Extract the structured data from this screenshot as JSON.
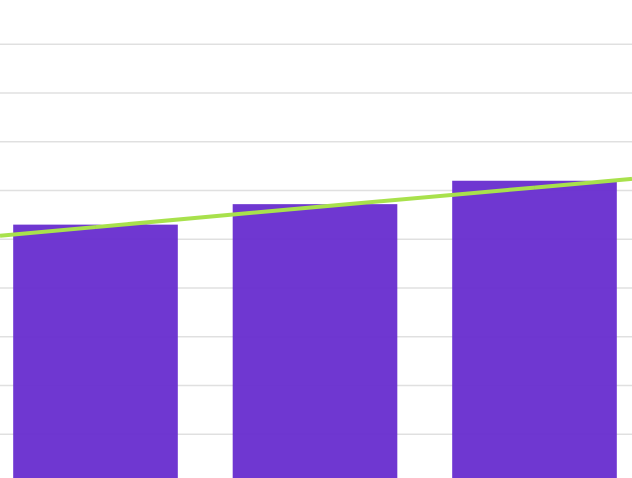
{
  "chart_data": {
    "type": "bar",
    "categories": [
      null,
      null,
      null
    ],
    "series": [
      {
        "type": "bar",
        "color": "#6a31d0",
        "values": [
          5.3,
          5.72,
          6.2
        ]
      },
      {
        "type": "line",
        "color": "#a8e14c",
        "values": [
          5.25,
          5.66,
          6.06
        ]
      }
    ],
    "ylim": [
      0,
      10
    ],
    "yticks": [
      1,
      2,
      3,
      4,
      5,
      6,
      7,
      8,
      9
    ],
    "grid": true
  }
}
